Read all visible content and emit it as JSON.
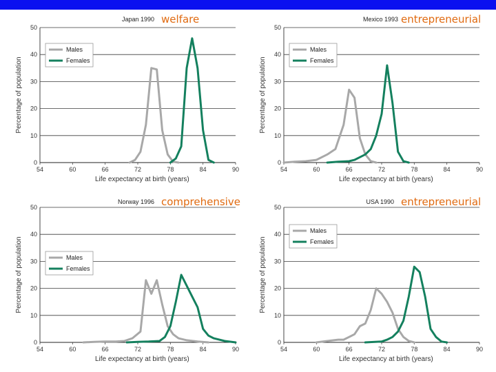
{
  "colors": {
    "top_bar": "#0a10f0",
    "males": "#a8a8a8",
    "females": "#14805e",
    "overlay": "#e06a10"
  },
  "chart_data": [
    {
      "type": "line",
      "title": "Japan 1990",
      "overlay_label": "welfare",
      "xlabel": "Life expectancy at birth (years)",
      "ylabel": "Percentage of population",
      "xlim": [
        54,
        90
      ],
      "ylim": [
        0,
        50
      ],
      "xticks": [
        "54",
        "60",
        "66",
        "72",
        "78",
        "84",
        "90"
      ],
      "yticks": [
        "0",
        "10",
        "20",
        "30",
        "40",
        "50"
      ],
      "legend_position": "top-left",
      "series": [
        {
          "name": "Males",
          "color": "#a8a8a8",
          "points": [
            [
              70.5,
              0
            ],
            [
              71.5,
              1
            ],
            [
              72.5,
              4
            ],
            [
              73.5,
              14
            ],
            [
              74.5,
              35
            ],
            [
              75.5,
              34.5
            ],
            [
              76.5,
              12
            ],
            [
              77.5,
              3
            ],
            [
              78.5,
              0.3
            ],
            [
              79.5,
              0
            ]
          ]
        },
        {
          "name": "Females",
          "color": "#14805e",
          "points": [
            [
              78,
              0
            ],
            [
              79,
              1.5
            ],
            [
              80,
              6
            ],
            [
              81,
              35
            ],
            [
              82,
              46
            ],
            [
              83,
              35
            ],
            [
              84,
              12
            ],
            [
              85,
              1
            ],
            [
              86,
              0
            ]
          ]
        }
      ]
    },
    {
      "type": "line",
      "title": "Mexico 1993",
      "overlay_label": "entrepreneurial",
      "xlabel": "Life expectancy at birth (years)",
      "ylabel": "Percentage of population",
      "xlim": [
        54,
        90
      ],
      "ylim": [
        0,
        50
      ],
      "xticks": [
        "54",
        "60",
        "66",
        "72",
        "78",
        "84",
        "90"
      ],
      "yticks": [
        "0",
        "10",
        "20",
        "30",
        "40",
        "50"
      ],
      "legend_position": "top-left",
      "series": [
        {
          "name": "Males",
          "color": "#a8a8a8",
          "points": [
            [
              54,
              0
            ],
            [
              56,
              0.3
            ],
            [
              58,
              0.5
            ],
            [
              60,
              1
            ],
            [
              62,
              3
            ],
            [
              63.5,
              5
            ],
            [
              64.5,
              11
            ],
            [
              65,
              14
            ],
            [
              66,
              27
            ],
            [
              67,
              24
            ],
            [
              68,
              9
            ],
            [
              69,
              3
            ],
            [
              70,
              0.5
            ],
            [
              71,
              0
            ]
          ]
        },
        {
          "name": "Females",
          "color": "#14805e",
          "points": [
            [
              62,
              0
            ],
            [
              64,
              0.3
            ],
            [
              66,
              0.5
            ],
            [
              67,
              1
            ],
            [
              68,
              2
            ],
            [
              69,
              3
            ],
            [
              70,
              5
            ],
            [
              71,
              10
            ],
            [
              72,
              18
            ],
            [
              73,
              36
            ],
            [
              74,
              22
            ],
            [
              75,
              4
            ],
            [
              76,
              0.5
            ],
            [
              77,
              0
            ]
          ]
        }
      ]
    },
    {
      "type": "line",
      "title": "Norway 1996",
      "overlay_label": "comprehensive",
      "xlabel": "Life expectancy at birth (years)",
      "ylabel": "Percentage of population",
      "xlim": [
        54,
        90
      ],
      "ylim": [
        0,
        50
      ],
      "xticks": [
        "54",
        "60",
        "66",
        "72",
        "78",
        "84",
        "90"
      ],
      "yticks": [
        "0",
        "10",
        "20",
        "30",
        "40",
        "50"
      ],
      "legend_position": "middle-left",
      "series": [
        {
          "name": "Males",
          "color": "#a8a8a8",
          "points": [
            [
              62,
              0
            ],
            [
              64,
              0.2
            ],
            [
              66,
              0.3
            ],
            [
              68,
              0.3
            ],
            [
              69.5,
              0.5
            ],
            [
              71,
              1.5
            ],
            [
              72.5,
              4
            ],
            [
              73.5,
              23
            ],
            [
              74.5,
              18
            ],
            [
              75.5,
              23
            ],
            [
              76.5,
              14
            ],
            [
              77.5,
              6
            ],
            [
              78.5,
              3
            ],
            [
              79.5,
              1.5
            ],
            [
              81,
              0.8
            ],
            [
              83,
              0.3
            ],
            [
              85,
              0
            ]
          ]
        },
        {
          "name": "Females",
          "color": "#14805e",
          "points": [
            [
              70,
              0
            ],
            [
              72,
              0.2
            ],
            [
              74,
              0.3
            ],
            [
              76,
              0.5
            ],
            [
              77,
              2
            ],
            [
              78,
              6
            ],
            [
              79,
              15
            ],
            [
              80,
              25
            ],
            [
              81,
              21
            ],
            [
              82,
              17
            ],
            [
              83,
              13
            ],
            [
              84,
              5
            ],
            [
              85,
              2.5
            ],
            [
              86,
              1.5
            ],
            [
              88,
              0.5
            ],
            [
              90,
              0
            ]
          ]
        }
      ]
    },
    {
      "type": "line",
      "title": "USA 1990",
      "overlay_label": "entrepreneurial",
      "xlabel": "Life expectancy at birth (years)",
      "ylabel": "Percentage of population",
      "xlim": [
        54,
        90
      ],
      "ylim": [
        0,
        50
      ],
      "xticks": [
        "54",
        "60",
        "66",
        "72",
        "78",
        "84",
        "90"
      ],
      "yticks": [
        "0",
        "10",
        "20",
        "30",
        "40",
        "50"
      ],
      "legend_position": "top-left",
      "series": [
        {
          "name": "Males",
          "color": "#a8a8a8",
          "points": [
            [
              60,
              0
            ],
            [
              62,
              0.5
            ],
            [
              64,
              1
            ],
            [
              65,
              1
            ],
            [
              66,
              2
            ],
            [
              67,
              3
            ],
            [
              68,
              6
            ],
            [
              69,
              7
            ],
            [
              70,
              12
            ],
            [
              71,
              20
            ],
            [
              72,
              18
            ],
            [
              73,
              15
            ],
            [
              74,
              11
            ],
            [
              75,
              5
            ],
            [
              76,
              2
            ],
            [
              77,
              0.5
            ],
            [
              78,
              0
            ]
          ]
        },
        {
          "name": "Females",
          "color": "#14805e",
          "points": [
            [
              69,
              0
            ],
            [
              72,
              0.3
            ],
            [
              73,
              1
            ],
            [
              74,
              2
            ],
            [
              75,
              4
            ],
            [
              76,
              8
            ],
            [
              77,
              17
            ],
            [
              78,
              28
            ],
            [
              79,
              26
            ],
            [
              80,
              17
            ],
            [
              81,
              5
            ],
            [
              82,
              2
            ],
            [
              83,
              0.3
            ],
            [
              84,
              0
            ]
          ]
        }
      ]
    }
  ]
}
